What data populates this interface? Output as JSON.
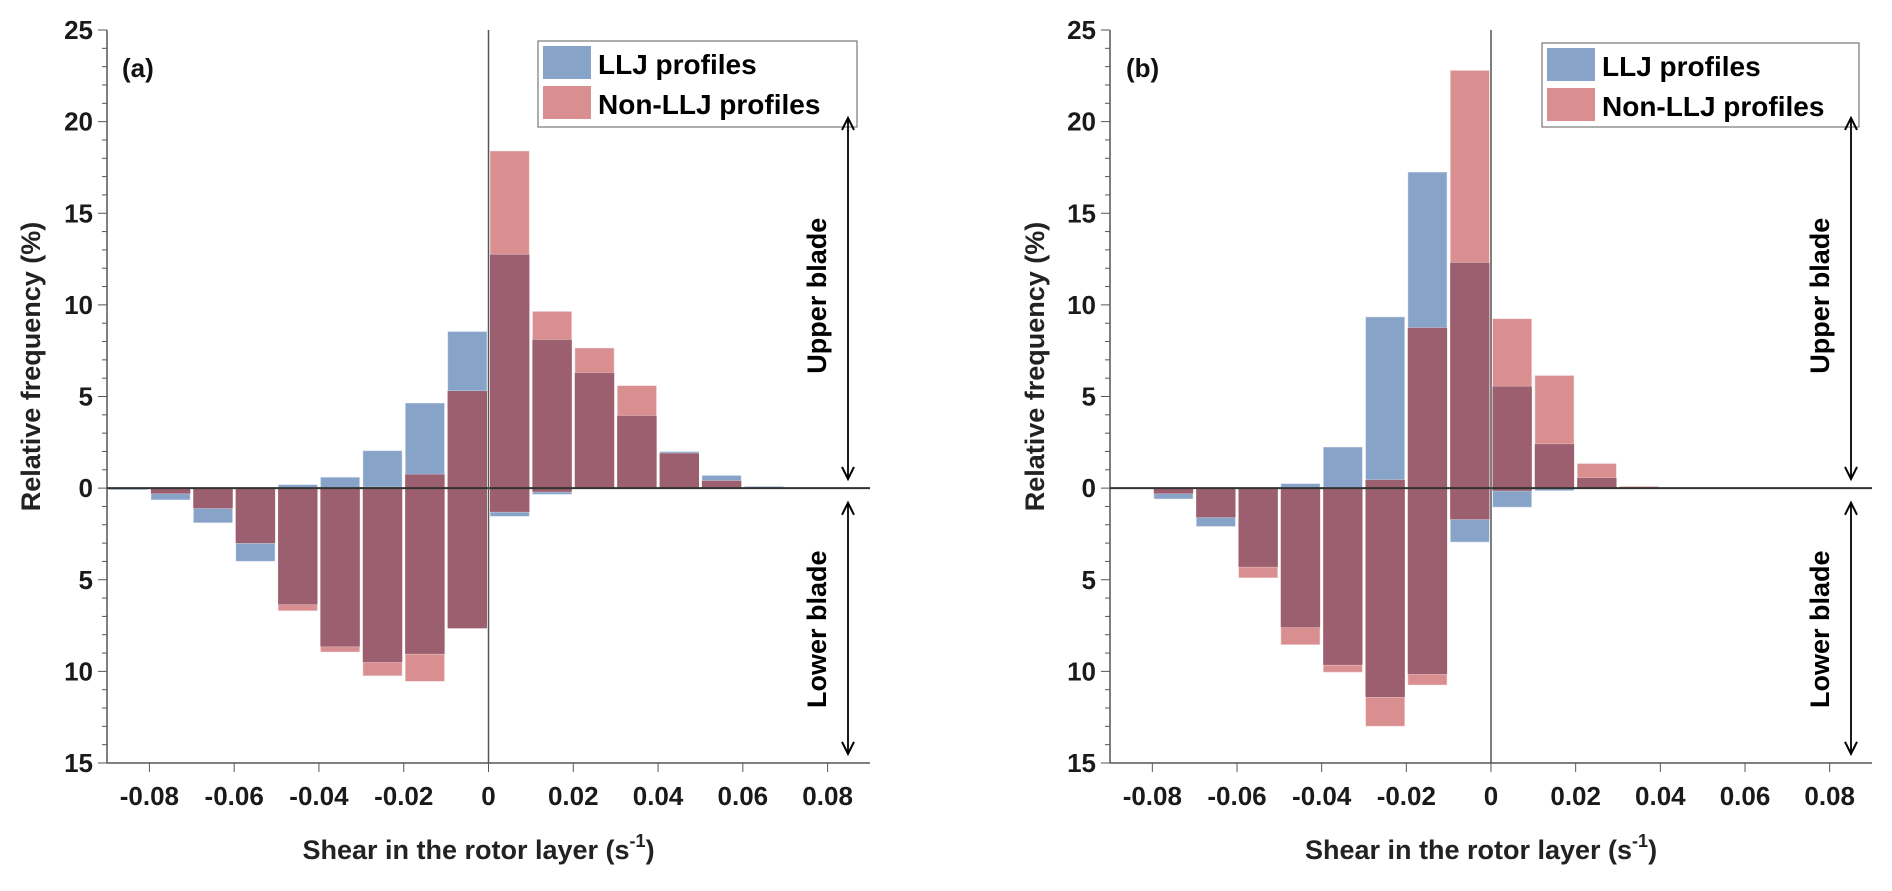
{
  "chart_data": [
    {
      "type": "bar",
      "panel_label": "(a)",
      "xlabel": "Shear in the rotor layer (s",
      "xlabel_superscript": "-1",
      "xlabel_suffix": ")",
      "ylabel": "Relative frequency (%)",
      "xlim": [
        -0.09,
        0.09
      ],
      "ylim": [
        -15,
        25
      ],
      "xticks": [
        -0.08,
        -0.06,
        -0.04,
        -0.02,
        0,
        0.02,
        0.04,
        0.06,
        0.08
      ],
      "xtick_labels": [
        "-0.08",
        "-0.06",
        "-0.04",
        "-0.02",
        "0",
        "0.02",
        "0.04",
        "0.06",
        "0.08"
      ],
      "yticks": [
        -15,
        -10,
        -5,
        0,
        5,
        10,
        15,
        20,
        25
      ],
      "ytick_labels": [
        "15",
        "10",
        "5",
        "0",
        "5",
        "10",
        "15",
        "20",
        "25"
      ],
      "bin_width": 0.01,
      "bin_centers": [
        -0.085,
        -0.075,
        -0.065,
        -0.055,
        -0.045,
        -0.035,
        -0.025,
        -0.015,
        -0.005,
        0.005,
        0.015,
        0.025,
        0.035,
        0.045,
        0.055,
        0.065,
        0.075,
        0.085
      ],
      "legend": {
        "position": "top-right",
        "entries": [
          "LLJ profiles",
          "Non-LLJ profiles"
        ]
      },
      "annotations": {
        "upper": "Upper blade",
        "lower": "Lower blade"
      },
      "series": [
        {
          "name": "LLJ profiles",
          "color": "#88a3c8",
          "upper_blade": [
            0,
            0,
            0,
            0,
            0.2,
            0.6,
            2.05,
            4.65,
            8.55,
            12.75,
            8.1,
            6.3,
            3.95,
            2.0,
            0.7,
            0.1,
            0,
            0
          ],
          "lower_blade": [
            0.1,
            0.65,
            1.9,
            4.0,
            6.35,
            8.65,
            9.5,
            9.05,
            7.65,
            1.55,
            0.35,
            0.05,
            0,
            0,
            0,
            0,
            0,
            0
          ]
        },
        {
          "name": "Non-LLJ profiles",
          "color": "#d98e8f",
          "upper_blade": [
            0,
            0,
            0,
            0,
            0,
            0,
            0.05,
            0.75,
            5.3,
            18.4,
            9.65,
            7.65,
            5.6,
            1.9,
            0.4,
            0,
            0,
            0
          ],
          "lower_blade": [
            0,
            0.3,
            1.1,
            3.0,
            6.7,
            8.95,
            10.25,
            10.55,
            7.65,
            1.3,
            0.2,
            0,
            0,
            0,
            0,
            0,
            0,
            0
          ]
        }
      ]
    },
    {
      "type": "bar",
      "panel_label": "(b)",
      "xlabel": "Shear in the rotor layer (s",
      "xlabel_superscript": "-1",
      "xlabel_suffix": ")",
      "ylabel": "Relative frequency (%)",
      "xlim": [
        -0.09,
        0.09
      ],
      "ylim": [
        -15,
        25
      ],
      "xticks": [
        -0.08,
        -0.06,
        -0.04,
        -0.02,
        0,
        0.02,
        0.04,
        0.06,
        0.08
      ],
      "xtick_labels": [
        "-0.08",
        "-0.06",
        "-0.04",
        "-0.02",
        "0",
        "0.02",
        "0.04",
        "0.06",
        "0.08"
      ],
      "yticks": [
        -15,
        -10,
        -5,
        0,
        5,
        10,
        15,
        20,
        25
      ],
      "ytick_labels": [
        "15",
        "10",
        "5",
        "0",
        "5",
        "10",
        "15",
        "20",
        "25"
      ],
      "bin_width": 0.01,
      "bin_centers": [
        -0.085,
        -0.075,
        -0.065,
        -0.055,
        -0.045,
        -0.035,
        -0.025,
        -0.015,
        -0.005,
        0.005,
        0.015,
        0.025,
        0.035,
        0.045,
        0.055,
        0.065,
        0.075,
        0.085
      ],
      "legend": {
        "position": "top-right",
        "entries": [
          "LLJ profiles",
          "Non-LLJ profiles"
        ]
      },
      "annotations": {
        "upper": "Upper blade",
        "lower": "Lower blade"
      },
      "series": [
        {
          "name": "LLJ profiles",
          "color": "#88a3c8",
          "upper_blade": [
            0,
            0,
            0,
            0,
            0.25,
            2.25,
            9.35,
            17.25,
            12.3,
            5.55,
            2.4,
            0.55,
            0,
            0,
            0,
            0,
            0,
            0
          ],
          "lower_blade": [
            0.05,
            0.6,
            2.1,
            4.3,
            7.6,
            9.65,
            11.4,
            10.15,
            2.95,
            1.05,
            0.15,
            0,
            0,
            0,
            0,
            0,
            0,
            0
          ]
        },
        {
          "name": "Non-LLJ profiles",
          "color": "#d98e8f",
          "upper_blade": [
            0,
            0,
            0,
            0,
            0,
            0,
            0.45,
            8.75,
            22.8,
            9.25,
            6.15,
            1.35,
            0.1,
            0,
            0,
            0,
            0,
            0
          ],
          "lower_blade": [
            0,
            0.3,
            1.6,
            4.9,
            8.55,
            10.05,
            13.0,
            10.75,
            1.7,
            0.15,
            0,
            0,
            0,
            0,
            0,
            0,
            0,
            0
          ]
        }
      ]
    }
  ],
  "colors": {
    "llj": "#88a3c8",
    "non_llj": "#d98e8f",
    "overlap": "#9c5f6f",
    "axis": "#555555",
    "text": "#111111"
  }
}
